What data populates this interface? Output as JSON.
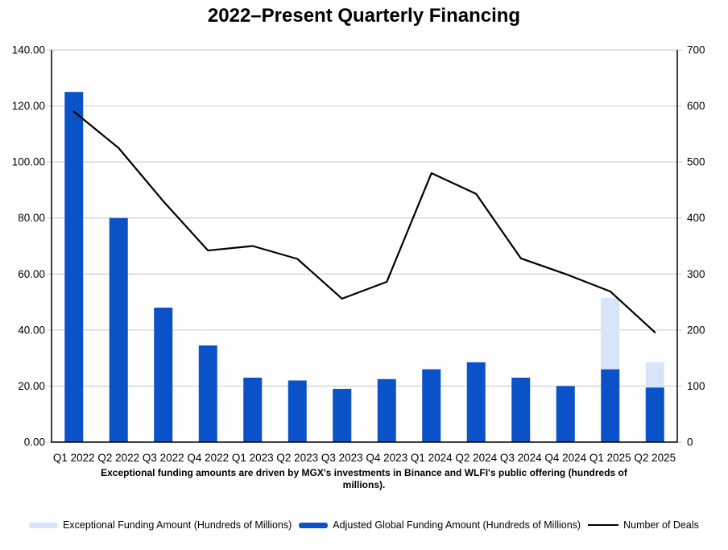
{
  "title": "2022–Present Quarterly Financing",
  "footnote": {
    "line1": "Exceptional funding amounts are driven by MGX's investments in Binance and WLFI's public offering (hundreds of",
    "line2": "millions)."
  },
  "legend": [
    {
      "label": "Exceptional Funding Amount (Hundreds of Millions)",
      "swatch": "bar",
      "color": "#D8E4F8"
    },
    {
      "label": "Adjusted Global Funding Amount (Hundreds of Millions)",
      "swatch": "bar",
      "color": "#0B51C8"
    },
    {
      "label": "Number of Deals",
      "swatch": "line",
      "color": "#000000"
    }
  ],
  "chart_data": {
    "type": "combo-bar-line",
    "title": "2022–Present Quarterly Financing",
    "categories": [
      "Q1 2022",
      "Q2 2022",
      "Q3 2022",
      "Q4 2022",
      "Q1 2023",
      "Q2 2023",
      "Q3 2023",
      "Q4 2023",
      "Q1 2024",
      "Q2 2024",
      "Q3 2024",
      "Q4 2024",
      "Q1 2025",
      "Q2 2025"
    ],
    "series": [
      {
        "name": "Exceptional Funding Amount (Hundreds of Millions)",
        "type": "bar",
        "stacked": true,
        "axis": "left",
        "color": "#D8E4F8",
        "values": [
          0,
          0,
          0,
          0,
          0,
          0,
          0,
          0,
          0,
          0,
          0,
          0,
          25.5,
          9
        ]
      },
      {
        "name": "Adjusted Global Funding Amount (Hundreds of Millions)",
        "type": "bar",
        "stacked": true,
        "axis": "left",
        "color": "#0B51C8",
        "values": [
          125,
          80,
          48,
          34.5,
          23,
          22,
          19,
          22.5,
          26,
          28.5,
          23,
          20,
          26,
          19.5
        ]
      },
      {
        "name": "Number of Deals",
        "type": "line",
        "axis": "right",
        "color": "#000000",
        "values": [
          590,
          525,
          430,
          342,
          350,
          327,
          256,
          286,
          480,
          443,
          328,
          300,
          269,
          196
        ]
      }
    ],
    "left_axis": {
      "min": 0,
      "max": 140,
      "step": 20,
      "tick_labels": [
        "140.00",
        "120.00",
        "100.00",
        "80.00",
        "60.00",
        "40.00",
        "20.00",
        "0.00"
      ]
    },
    "right_axis": {
      "min": 0,
      "max": 700,
      "step": 100,
      "tick_labels": [
        "700",
        "600",
        "500",
        "400",
        "300",
        "200",
        "100",
        "0"
      ]
    },
    "grid": true,
    "legend_position": "bottom",
    "colors": {
      "gridline": "#C6C6C6",
      "axis": "#000000"
    }
  }
}
